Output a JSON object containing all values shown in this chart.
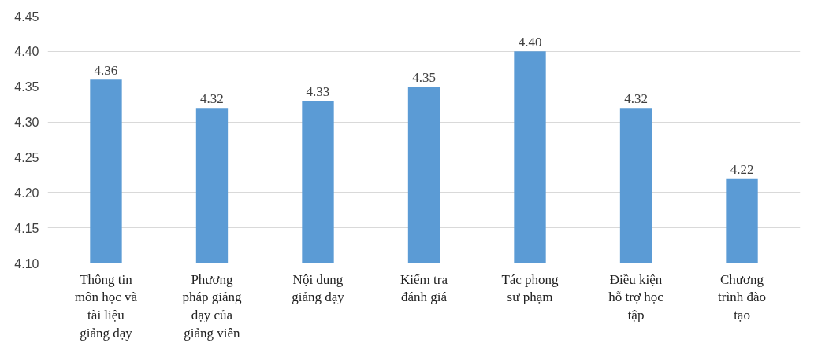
{
  "chart_data": {
    "type": "bar",
    "categories": [
      "Thông tin\nmôn học và\ntài liệu\ngiảng dạy",
      "Phương\npháp giảng\ndạy của\ngiảng viên",
      "Nội dung\ngiảng dạy",
      "Kiểm tra\nđánh giá",
      "Tác phong\nsư phạm",
      "Điều kiện\nhỗ trợ học\ntập",
      "Chương\ntrình đào\ntạo"
    ],
    "values": [
      4.36,
      4.32,
      4.33,
      4.35,
      4.4,
      4.32,
      4.22
    ],
    "color": "#5b9bd5",
    "ylim": [
      4.1,
      4.45
    ],
    "yticks": [
      {
        "value": 4.1,
        "label": "4.10"
      },
      {
        "value": 4.15,
        "label": "4.15"
      },
      {
        "value": 4.2,
        "label": "4.20"
      },
      {
        "value": 4.25,
        "label": "4.25"
      },
      {
        "value": 4.3,
        "label": "4.30"
      },
      {
        "value": 4.35,
        "label": "4.35"
      },
      {
        "value": 4.4,
        "label": "4.40"
      },
      {
        "value": 4.45,
        "label": "4.45"
      }
    ],
    "grid": "y",
    "value_labels": [
      "4.36",
      "4.32",
      "4.33",
      "4.35",
      "4.40",
      "4.32",
      "4.22"
    ]
  }
}
